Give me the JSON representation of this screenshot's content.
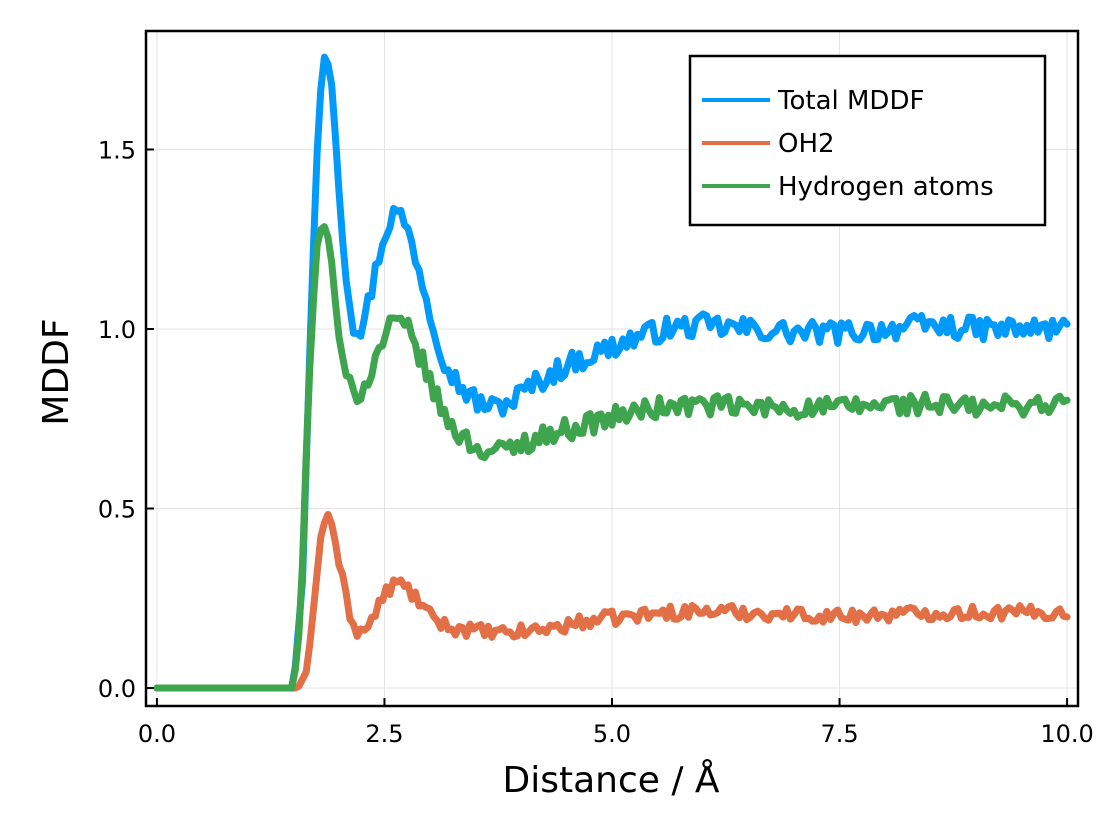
{
  "chart_data": {
    "type": "line",
    "title": "",
    "xlabel": "Distance / Å",
    "ylabel": "MDDF",
    "xlim": [
      -0.12,
      10.12
    ],
    "ylim": [
      -0.05,
      1.83
    ],
    "grid": true,
    "legend_position": "top-right",
    "x_ticks": [
      0.0,
      2.5,
      5.0,
      7.5,
      10.0
    ],
    "x_tick_labels": [
      "0.0",
      "2.5",
      "5.0",
      "7.5",
      "10.0"
    ],
    "y_ticks": [
      0.0,
      0.5,
      1.0,
      1.5
    ],
    "y_tick_labels": [
      "0.0",
      "0.5",
      "1.0",
      "1.5"
    ],
    "series": [
      {
        "name": "Total MDDF",
        "color": "#009AFA",
        "anchors": [
          [
            0.0,
            0.0
          ],
          [
            1.5,
            0.0
          ],
          [
            1.6,
            0.3
          ],
          [
            1.7,
            1.1
          ],
          [
            1.78,
            1.62
          ],
          [
            1.85,
            1.78
          ],
          [
            1.92,
            1.68
          ],
          [
            2.0,
            1.4
          ],
          [
            2.08,
            1.15
          ],
          [
            2.15,
            1.02
          ],
          [
            2.25,
            1.0
          ],
          [
            2.35,
            1.1
          ],
          [
            2.45,
            1.22
          ],
          [
            2.55,
            1.3
          ],
          [
            2.62,
            1.33
          ],
          [
            2.72,
            1.3
          ],
          [
            2.85,
            1.2
          ],
          [
            3.0,
            1.05
          ],
          [
            3.15,
            0.92
          ],
          [
            3.3,
            0.85
          ],
          [
            3.5,
            0.8
          ],
          [
            3.7,
            0.78
          ],
          [
            3.9,
            0.8
          ],
          [
            4.1,
            0.84
          ],
          [
            4.3,
            0.87
          ],
          [
            4.5,
            0.9
          ],
          [
            4.7,
            0.92
          ],
          [
            4.9,
            0.94
          ],
          [
            5.1,
            0.96
          ],
          [
            5.3,
            0.98
          ],
          [
            5.6,
            1.0
          ],
          [
            6.0,
            1.01
          ],
          [
            6.5,
            1.0
          ],
          [
            7.0,
            0.99
          ],
          [
            7.5,
            0.99
          ],
          [
            8.0,
            1.0
          ],
          [
            8.5,
            1.01
          ],
          [
            9.0,
            1.0
          ],
          [
            9.5,
            1.0
          ],
          [
            10.0,
            1.0
          ]
        ],
        "noise_start": 2.0,
        "noise_amplitude": 0.032,
        "line_width": 7
      },
      {
        "name": "OH2",
        "color": "#E26F46",
        "anchors": [
          [
            0.0,
            0.0
          ],
          [
            1.55,
            0.0
          ],
          [
            1.65,
            0.05
          ],
          [
            1.72,
            0.22
          ],
          [
            1.8,
            0.42
          ],
          [
            1.87,
            0.49
          ],
          [
            1.93,
            0.45
          ],
          [
            2.0,
            0.35
          ],
          [
            2.1,
            0.22
          ],
          [
            2.2,
            0.16
          ],
          [
            2.3,
            0.16
          ],
          [
            2.4,
            0.21
          ],
          [
            2.5,
            0.26
          ],
          [
            2.6,
            0.29
          ],
          [
            2.7,
            0.29
          ],
          [
            2.85,
            0.25
          ],
          [
            3.0,
            0.2
          ],
          [
            3.2,
            0.17
          ],
          [
            3.5,
            0.16
          ],
          [
            3.8,
            0.15
          ],
          [
            4.1,
            0.16
          ],
          [
            4.4,
            0.17
          ],
          [
            4.8,
            0.19
          ],
          [
            5.2,
            0.2
          ],
          [
            5.6,
            0.21
          ],
          [
            6.0,
            0.215
          ],
          [
            6.5,
            0.21
          ],
          [
            7.0,
            0.205
          ],
          [
            7.5,
            0.2
          ],
          [
            8.0,
            0.205
          ],
          [
            8.5,
            0.21
          ],
          [
            9.0,
            0.21
          ],
          [
            9.5,
            0.21
          ],
          [
            10.0,
            0.21
          ]
        ],
        "noise_start": 2.0,
        "noise_amplitude": 0.02,
        "line_width": 7
      },
      {
        "name": "Hydrogen atoms",
        "color": "#3EA44E",
        "anchors": [
          [
            0.0,
            0.0
          ],
          [
            1.5,
            0.0
          ],
          [
            1.58,
            0.2
          ],
          [
            1.66,
            0.8
          ],
          [
            1.75,
            1.22
          ],
          [
            1.82,
            1.3
          ],
          [
            1.9,
            1.24
          ],
          [
            1.97,
            1.05
          ],
          [
            2.05,
            0.88
          ],
          [
            2.15,
            0.82
          ],
          [
            2.25,
            0.83
          ],
          [
            2.35,
            0.88
          ],
          [
            2.45,
            0.95
          ],
          [
            2.55,
            1.0
          ],
          [
            2.65,
            1.02
          ],
          [
            2.75,
            1.0
          ],
          [
            2.9,
            0.92
          ],
          [
            3.05,
            0.82
          ],
          [
            3.2,
            0.74
          ],
          [
            3.4,
            0.69
          ],
          [
            3.6,
            0.66
          ],
          [
            3.8,
            0.66
          ],
          [
            4.0,
            0.68
          ],
          [
            4.2,
            0.7
          ],
          [
            4.5,
            0.72
          ],
          [
            4.8,
            0.74
          ],
          [
            5.1,
            0.76
          ],
          [
            5.5,
            0.78
          ],
          [
            6.0,
            0.79
          ],
          [
            6.5,
            0.78
          ],
          [
            7.0,
            0.78
          ],
          [
            7.5,
            0.78
          ],
          [
            8.0,
            0.79
          ],
          [
            8.5,
            0.79
          ],
          [
            9.0,
            0.78
          ],
          [
            9.5,
            0.79
          ],
          [
            10.0,
            0.79
          ]
        ],
        "noise_start": 2.0,
        "noise_amplitude": 0.03,
        "line_width": 7
      }
    ]
  }
}
